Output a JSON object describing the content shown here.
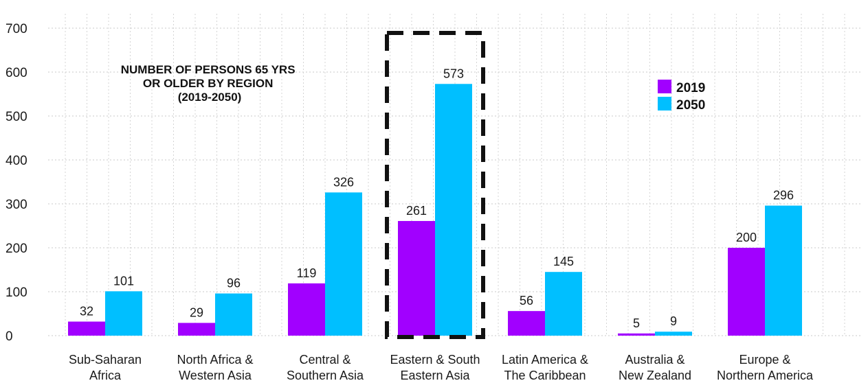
{
  "chart_data": {
    "type": "bar",
    "title": "NUMBER OF PERSONS 65 YRS OR OLDER BY REGION (2019-2050)",
    "title_lines": [
      "NUMBER OF PERSONS 65 YRS",
      "OR OLDER BY REGION",
      "(2019-2050)"
    ],
    "categories": [
      "Sub-Saharan Africa",
      "North Africa & Western Asia",
      "Central & Southern Asia",
      "Eastern & South Eastern Asia",
      "Latin America & The Caribbean",
      "Australia & New Zealand",
      "Europe & Northern America"
    ],
    "category_lines": [
      [
        "Sub-Saharan",
        "Africa"
      ],
      [
        "North Africa &",
        "Western Asia"
      ],
      [
        "Central &",
        "Southern Asia"
      ],
      [
        "Eastern & South",
        "Eastern Asia"
      ],
      [
        "Latin America &",
        "The Caribbean"
      ],
      [
        "Australia &",
        "New Zealand"
      ],
      [
        "Europe &",
        "Northern America"
      ]
    ],
    "series": [
      {
        "name": "2019",
        "color": "#a100ff",
        "values": [
          32,
          29,
          119,
          261,
          56,
          5,
          200
        ]
      },
      {
        "name": "2050",
        "color": "#00bfff",
        "values": [
          101,
          96,
          326,
          573,
          145,
          9,
          296
        ]
      }
    ],
    "bar_values": [
      [
        32,
        29,
        119,
        261,
        56,
        5,
        200
      ],
      [
        101,
        96,
        326,
        573,
        145,
        9,
        296
      ]
    ],
    "ylim": [
      0,
      700
    ],
    "yticks": [
      0,
      100,
      200,
      300,
      400,
      500,
      600,
      700
    ],
    "xlabel": "",
    "ylabel": "",
    "grid": true,
    "legend_position": "upper-right",
    "highlight_category": "Eastern & South Eastern Asia"
  }
}
